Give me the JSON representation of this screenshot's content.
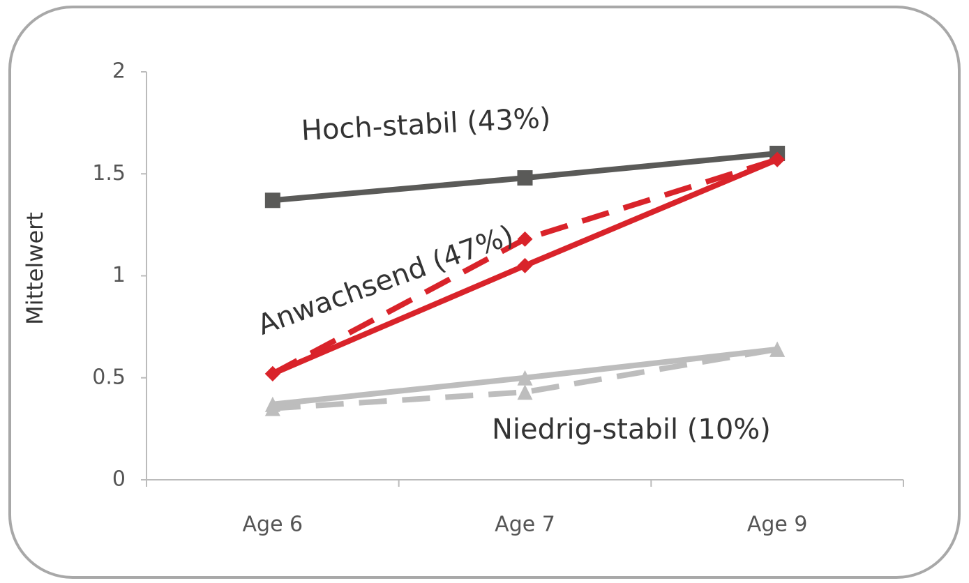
{
  "chart_data": {
    "type": "line",
    "y_label": "Mittelwert",
    "categories": [
      "Age 6",
      "Age 7",
      "Age 9"
    ],
    "ylim": [
      0,
      2
    ],
    "yticks": [
      0,
      0.5,
      1,
      1.5,
      2
    ],
    "series": [
      {
        "color": "#5a5a58",
        "dash": false,
        "marker": "square",
        "values": [
          1.37,
          1.48,
          1.6
        ]
      },
      {
        "color": "#d9232a",
        "dash": false,
        "marker": "diamond",
        "values": [
          0.52,
          1.05,
          1.57
        ]
      },
      {
        "color": "#d9232a",
        "dash": true,
        "marker": "diamond",
        "values": [
          0.52,
          1.18,
          1.57
        ]
      },
      {
        "color": "#bdbdbd",
        "dash": false,
        "marker": "triangle",
        "values": [
          0.37,
          0.5,
          0.64
        ]
      },
      {
        "color": "#bdbdbd",
        "dash": true,
        "marker": "triangle",
        "values": [
          0.35,
          0.43,
          0.64
        ]
      }
    ],
    "annotations": [
      "Hoch-stabil (43%)",
      "Anwachsend (47%)",
      "Niedrig-stabil (10%)"
    ]
  }
}
